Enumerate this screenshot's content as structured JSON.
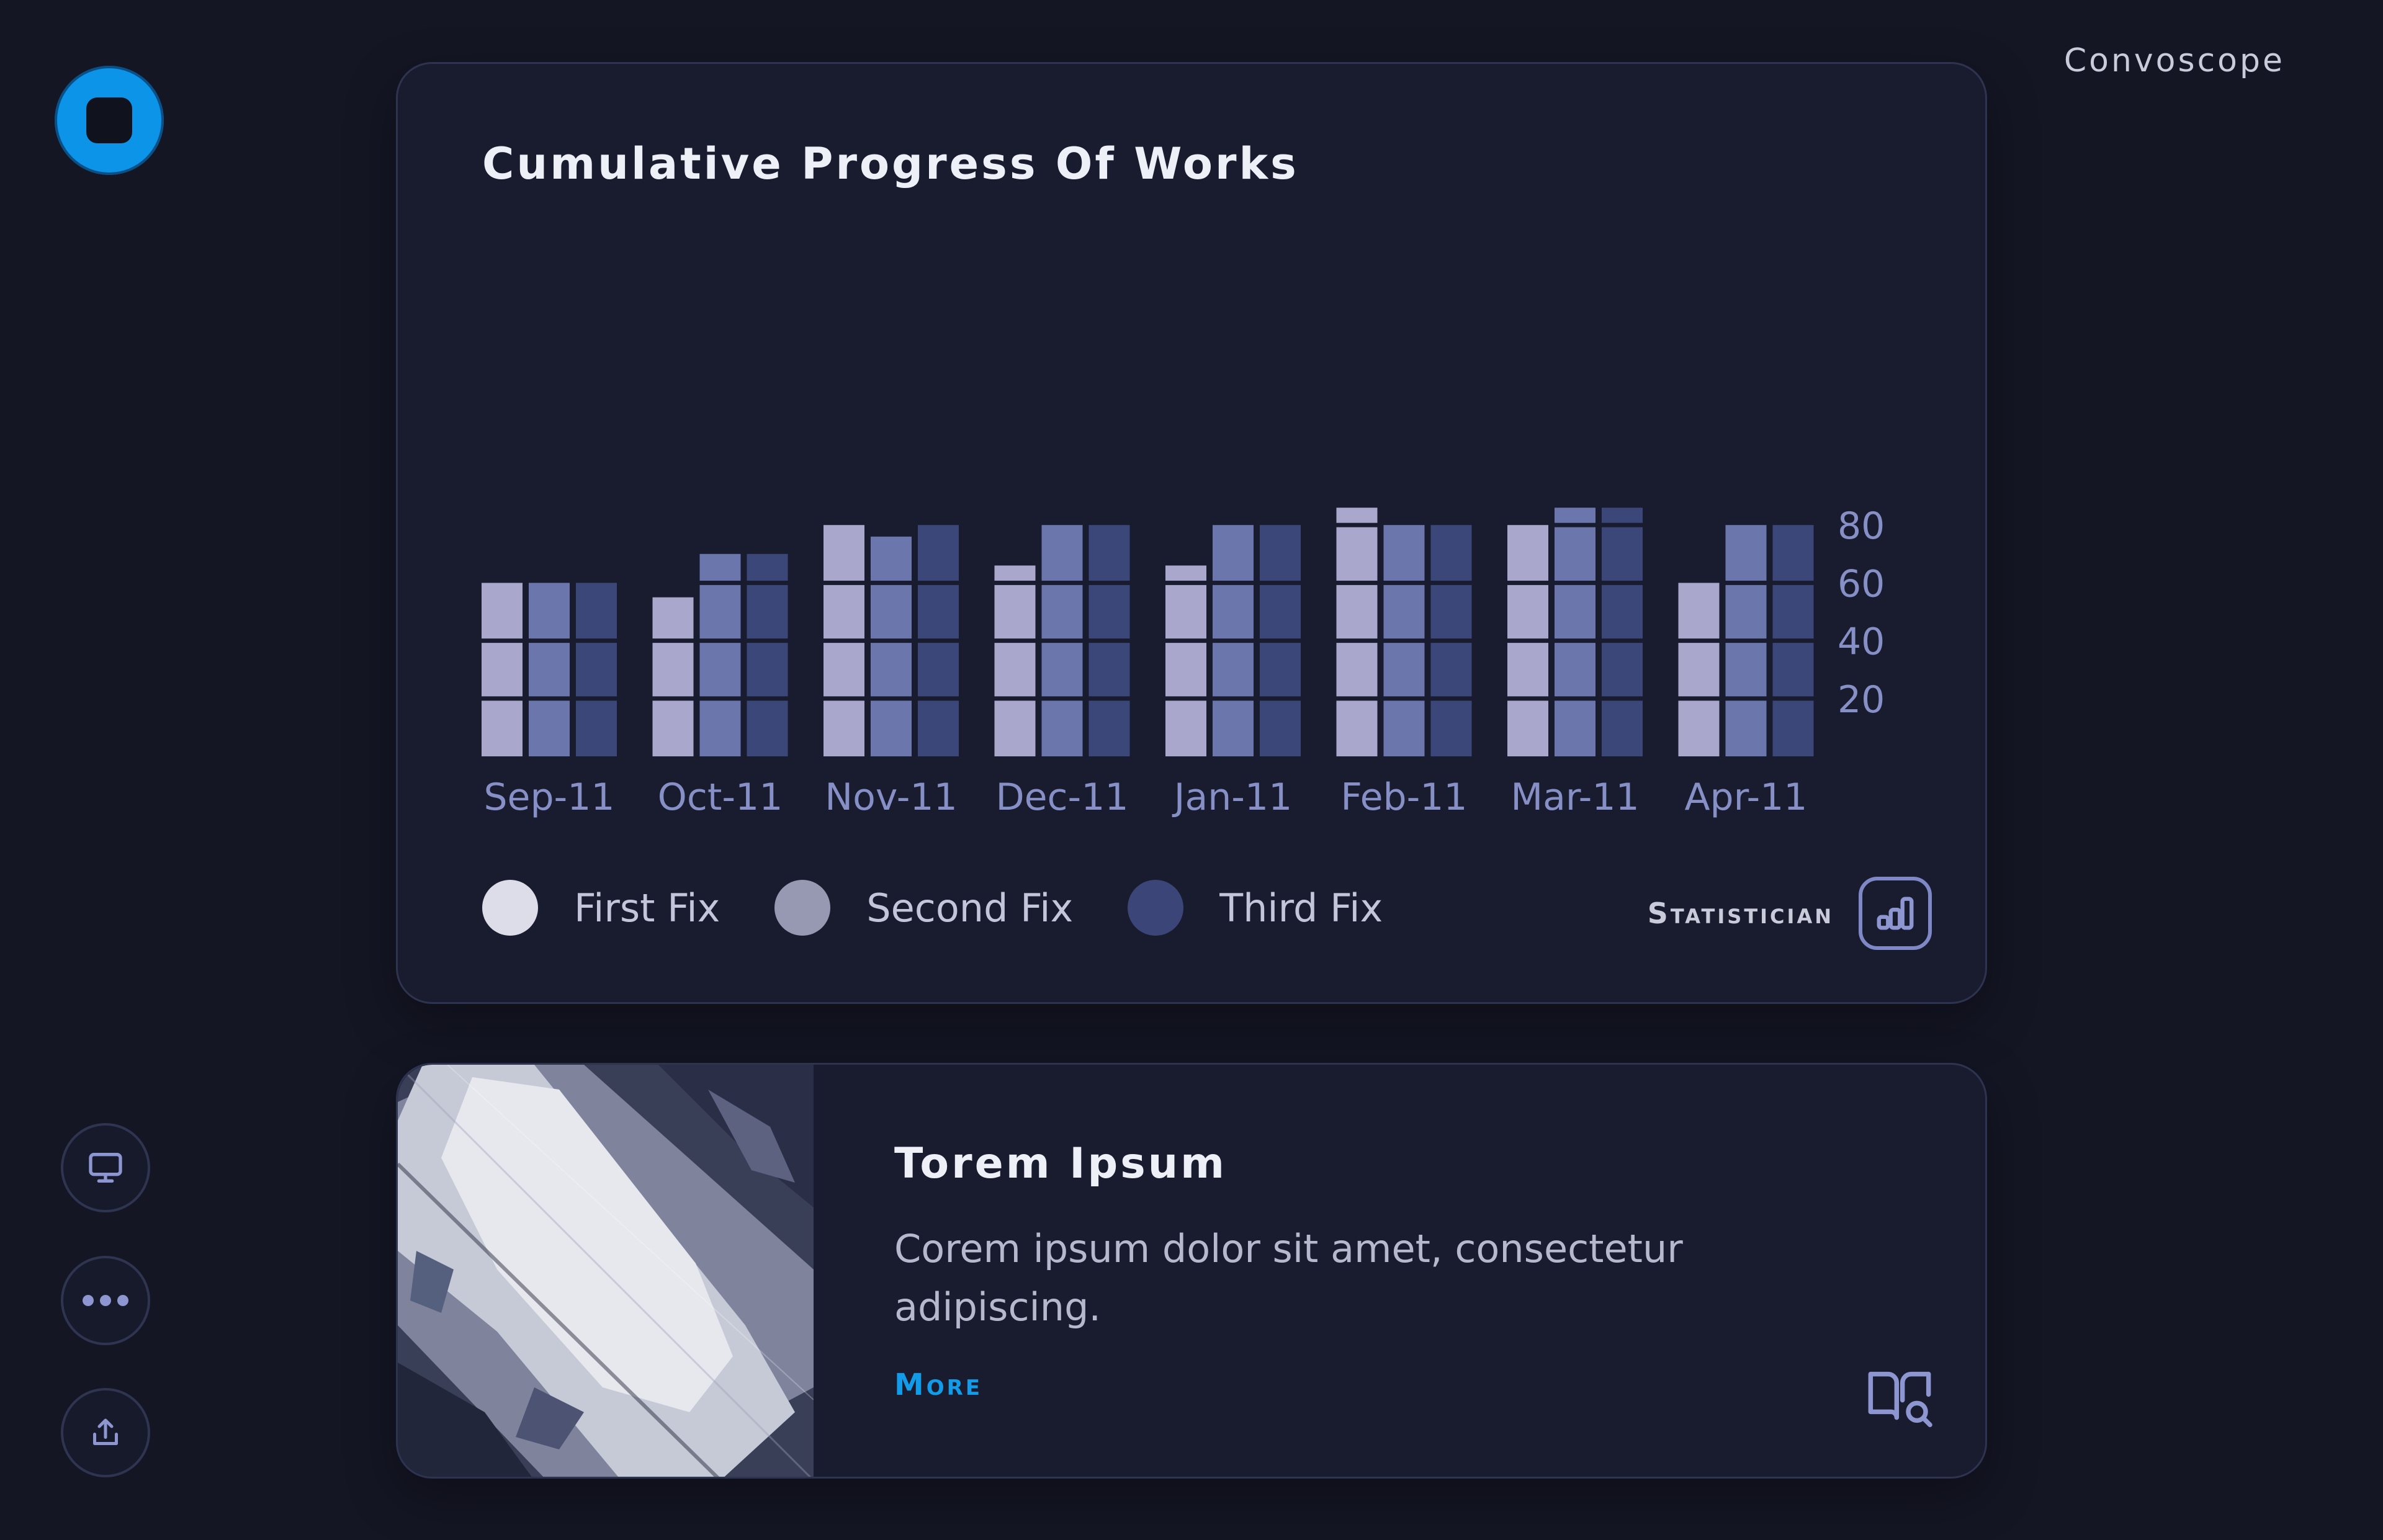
{
  "app": {
    "name": "Convoscope"
  },
  "chart_card": {
    "title": "Cumulative Progress Of Works",
    "statistician_label": "Statistician"
  },
  "chart_data": {
    "type": "bar",
    "title": "Cumulative Progress Of Works",
    "categories": [
      "Sep-11",
      "Oct-11",
      "Nov-11",
      "Dec-11",
      "Jan-11",
      "Feb-11",
      "Mar-11",
      "Apr-11"
    ],
    "series": [
      {
        "name": "First Fix",
        "values": [
          60,
          55,
          80,
          66,
          66,
          86,
          80,
          60
        ]
      },
      {
        "name": "Second Fix",
        "values": [
          60,
          70,
          76,
          80,
          80,
          80,
          86,
          80
        ]
      },
      {
        "name": "Third Fix",
        "values": [
          60,
          70,
          80,
          80,
          80,
          80,
          86,
          80
        ]
      }
    ],
    "yticks": [
      20,
      40,
      60,
      80
    ],
    "ylim": [
      0,
      90
    ],
    "axis_position": "right",
    "grid": false,
    "legend": "bottom-left",
    "colors": [
      "#a9a7cc",
      "#6b76ad",
      "#3b4679"
    ],
    "legend_colors": [
      "#dcdde8",
      "#9799b3",
      "#3b4577"
    ]
  },
  "info_card": {
    "title": "Torem Ipsum",
    "text": "Corem ipsum dolor sit amet, consectetur adipiscing.",
    "more_label": "More"
  },
  "sidebar": {
    "buttons": [
      {
        "icon": "monitor-icon"
      },
      {
        "icon": "more-dots-icon"
      },
      {
        "icon": "share-upload-icon"
      }
    ]
  }
}
